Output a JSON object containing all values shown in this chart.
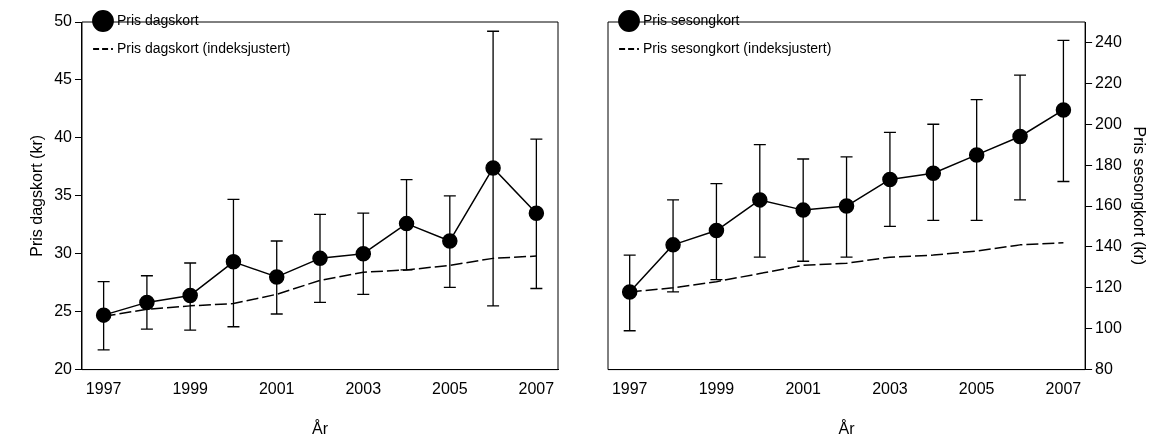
{
  "chart_data": [
    {
      "type": "line",
      "xlabel": "År",
      "ylabel": "Pris dagskort (kr)",
      "x": [
        1997,
        1998,
        1999,
        2000,
        2001,
        2002,
        2003,
        2004,
        2005,
        2006,
        2007
      ],
      "xlim": [
        1996.5,
        2007.5
      ],
      "xticks": [
        1997,
        1999,
        2001,
        2003,
        2005,
        2007
      ],
      "ylim": [
        20,
        50
      ],
      "yticks": [
        20,
        25,
        30,
        35,
        40,
        45,
        50
      ],
      "grid": false,
      "legend": "top left",
      "series": [
        {
          "name": "Pris dagskort",
          "color": "#000000",
          "marker": "circle",
          "line_style": "solid",
          "values": [
            24.7,
            25.8,
            26.4,
            29.3,
            28.0,
            29.6,
            30.0,
            32.6,
            31.1,
            37.4,
            33.5
          ],
          "errors": [
            [
              21.7,
              27.6
            ],
            [
              23.5,
              28.1
            ],
            [
              23.4,
              29.2
            ],
            [
              23.7,
              34.7
            ],
            [
              24.8,
              31.1
            ],
            [
              25.8,
              33.4
            ],
            [
              26.5,
              33.5
            ],
            [
              28.6,
              36.4
            ],
            [
              27.1,
              35.0
            ],
            [
              25.5,
              49.2
            ],
            [
              27.0,
              39.9
            ]
          ]
        },
        {
          "name": "Pris dagskort (indeksjustert)",
          "color": "#000000",
          "marker": "none",
          "line_style": "dashed",
          "values": [
            24.6,
            25.2,
            25.5,
            25.7,
            26.5,
            27.7,
            28.4,
            28.6,
            29.0,
            29.6,
            29.8
          ]
        }
      ]
    },
    {
      "type": "line",
      "xlabel": "År",
      "y2label": "Pris sesongkort (kr)",
      "x": [
        1997,
        1998,
        1999,
        2000,
        2001,
        2002,
        2003,
        2004,
        2005,
        2006,
        2007
      ],
      "xlim": [
        1996.5,
        2007.5
      ],
      "xticks": [
        1997,
        1999,
        2001,
        2003,
        2005,
        2007
      ],
      "y2lim": [
        80,
        250
      ],
      "y2ticks": [
        80,
        100,
        120,
        140,
        160,
        180,
        200,
        220,
        240
      ],
      "grid": false,
      "legend": "top left",
      "series": [
        {
          "name": "Pris sesongkort",
          "color": "#000000",
          "axis": "y2",
          "marker": "circle",
          "line_style": "solid",
          "values": [
            118,
            141,
            148,
            163,
            158,
            160,
            173,
            176,
            185,
            194,
            207
          ],
          "errors": [
            [
              99,
              136
            ],
            [
              118,
              163
            ],
            [
              124,
              171
            ],
            [
              135,
              190
            ],
            [
              133,
              183
            ],
            [
              135,
              184
            ],
            [
              150,
              196
            ],
            [
              153,
              200
            ],
            [
              153,
              212
            ],
            [
              163,
              224
            ],
            [
              172,
              241
            ]
          ]
        },
        {
          "name": "Pris sesongkort (indeksjustert)",
          "color": "#000000",
          "axis": "y2",
          "marker": "none",
          "line_style": "dashed",
          "values": [
            118,
            120,
            123,
            127,
            131,
            132,
            135,
            136,
            138,
            141,
            142
          ]
        }
      ]
    }
  ]
}
